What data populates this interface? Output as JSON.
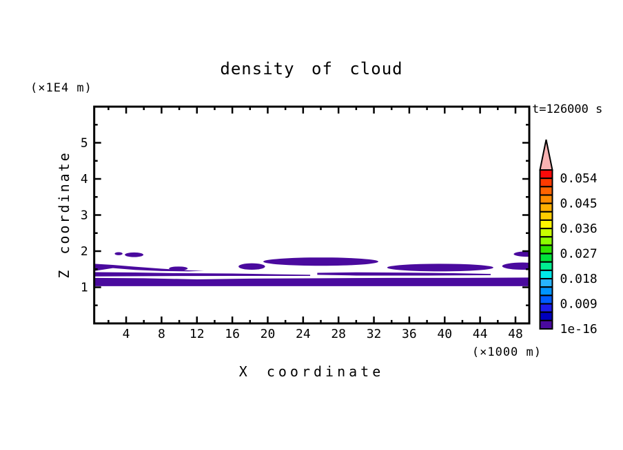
{
  "chart_data": {
    "type": "contour",
    "title": "density of cloud",
    "xlabel": "X coordinate",
    "ylabel": "Z coordinate",
    "x_unit_label": "(×1000 m)",
    "y_unit_label": "(×1E4 m)",
    "time_label": "t=126000 s",
    "x_range": [
      0.39,
      49.56
    ],
    "z_range": [
      0,
      6
    ],
    "x_ticks_major": [
      4,
      8,
      12,
      16,
      20,
      24,
      28,
      32,
      36,
      40,
      44,
      48
    ],
    "x_ticks_minor": [
      2,
      6,
      10,
      14,
      18,
      22,
      26,
      30,
      34,
      38,
      42,
      46
    ],
    "z_ticks_major": [
      1,
      2,
      3,
      4,
      5
    ],
    "z_ticks_minor": [
      0.5,
      1.5,
      2.5,
      3.5,
      4.5,
      5.5
    ],
    "grid": false,
    "contour_fill_color": "#4A0A9E",
    "colorbar": {
      "position": "right",
      "level_min_label": "1e-16",
      "level_step": 0.003,
      "level_max": 0.057,
      "arrow_color": "#F7B2B2",
      "cell_colors_top_to_bottom": [
        "#FA0A0A",
        "#FF3A00",
        "#FF6400",
        "#FF8C00",
        "#FFAF00",
        "#FFCD00",
        "#FFF500",
        "#C8FF00",
        "#8CFF00",
        "#30E500",
        "#00E43C",
        "#00EE91",
        "#00E8E8",
        "#28B4FF",
        "#0095FF",
        "#005CFF",
        "#1C1CEB",
        "#0000BE",
        "#4A0A9E"
      ],
      "tick_labels_top_to_bottom": [
        "0.054",
        "0.045",
        "0.036",
        "0.027",
        "0.018",
        "0.009",
        "1e-16"
      ],
      "first_label_cell_index": 1,
      "label_every_n_cells": 3
    },
    "regions": [
      {
        "type": "polygon",
        "points": [
          [
            0.39,
            1.26
          ],
          [
            6,
            1.25
          ],
          [
            12,
            1.22
          ],
          [
            18,
            1.24
          ],
          [
            26,
            1.25
          ],
          [
            34,
            1.26
          ],
          [
            42,
            1.26
          ],
          [
            49.56,
            1.27
          ],
          [
            49.56,
            1.03
          ],
          [
            0.39,
            1.03
          ]
        ]
      },
      {
        "type": "polygon",
        "points": [
          [
            0.39,
            1.42
          ],
          [
            5,
            1.41
          ],
          [
            10,
            1.39
          ],
          [
            16,
            1.38
          ],
          [
            21,
            1.36
          ],
          [
            24.8,
            1.345
          ],
          [
            24.8,
            1.315
          ],
          [
            16,
            1.315
          ],
          [
            8,
            1.31
          ],
          [
            0.39,
            1.3
          ]
        ]
      },
      {
        "type": "polygon",
        "points": [
          [
            25.6,
            1.4
          ],
          [
            30,
            1.415
          ],
          [
            36,
            1.405
          ],
          [
            41,
            1.39
          ],
          [
            45.2,
            1.37
          ],
          [
            45.2,
            1.335
          ],
          [
            38,
            1.325
          ],
          [
            30,
            1.325
          ],
          [
            25.6,
            1.345
          ]
        ]
      },
      {
        "type": "polygon",
        "points": [
          [
            0.39,
            1.65
          ],
          [
            2.5,
            1.62
          ],
          [
            5,
            1.57
          ],
          [
            8,
            1.515
          ],
          [
            11,
            1.47
          ],
          [
            12.8,
            1.455
          ],
          [
            11,
            1.44
          ],
          [
            8,
            1.45
          ],
          [
            5,
            1.48
          ],
          [
            2.5,
            1.53
          ],
          [
            0.39,
            1.45
          ]
        ]
      },
      {
        "type": "ellipse",
        "cx": 9.9,
        "cz": 1.52,
        "rx": 1.05,
        "rz": 0.055
      },
      {
        "type": "ellipse",
        "cx": 18.2,
        "cz": 1.575,
        "rx": 1.5,
        "rz": 0.09
      },
      {
        "type": "ellipse",
        "cx": 26.0,
        "cz": 1.71,
        "rx": 6.5,
        "rz": 0.115
      },
      {
        "type": "ellipse",
        "cx": 39.5,
        "cz": 1.545,
        "rx": 6.0,
        "rz": 0.105
      },
      {
        "type": "ellipse",
        "cx": 49.4,
        "cz": 1.92,
        "rx": 1.6,
        "rz": 0.075
      },
      {
        "type": "ellipse",
        "cx": 48.8,
        "cz": 1.585,
        "rx": 2.3,
        "rz": 0.1
      },
      {
        "type": "ellipse",
        "cx": 3.15,
        "cz": 1.93,
        "rx": 0.45,
        "rz": 0.042
      },
      {
        "type": "ellipse",
        "cx": 4.9,
        "cz": 1.9,
        "rx": 1.05,
        "rz": 0.065
      }
    ]
  }
}
